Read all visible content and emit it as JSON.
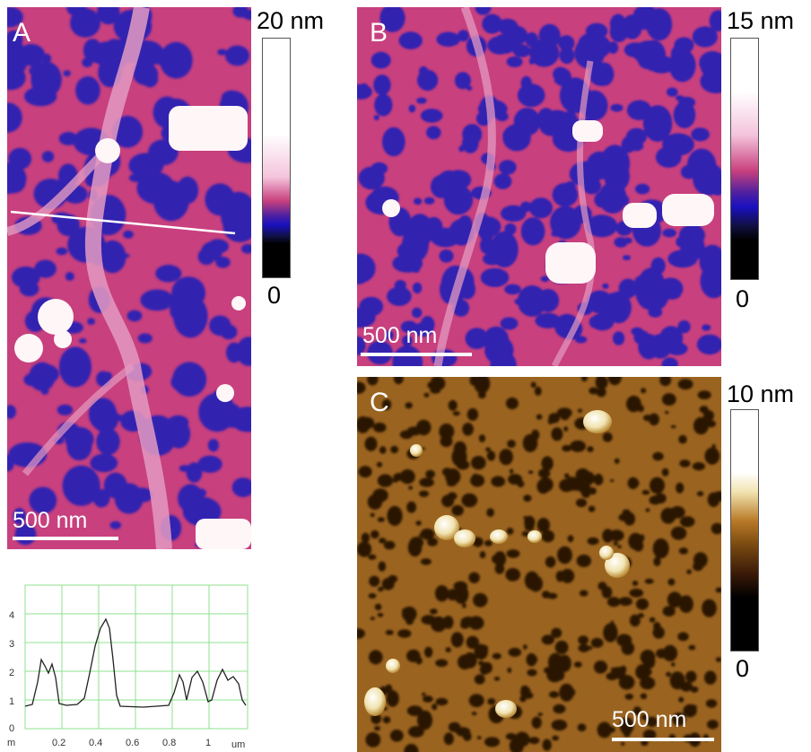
{
  "panels": {
    "a": {
      "label": "A",
      "scale_bar": "500 nm",
      "colorbar_max": "20 nm",
      "colorbar_min": "0"
    },
    "b": {
      "label": "B",
      "scale_bar": "500 nm",
      "colorbar_max": "15 nm",
      "colorbar_min": "0"
    },
    "c": {
      "label": "C",
      "scale_bar": "500 nm",
      "colorbar_max": "10 nm",
      "colorbar_min": "0"
    }
  },
  "profile": {
    "y_ticks": [
      "4",
      "3",
      "2",
      "1",
      "0"
    ],
    "y_unit": "m",
    "x_ticks": [
      "0.2",
      "0.4",
      "0.6",
      "0.8",
      "1"
    ],
    "x_unit": "um"
  },
  "colors": {
    "pink_background": "#c8407e",
    "hole_blue": "#3020b0",
    "bright_feature": "#fff6f8",
    "brown_background": "#7a4a10",
    "profile_grid": "#8fe08f"
  }
}
